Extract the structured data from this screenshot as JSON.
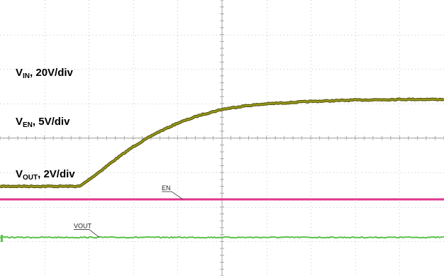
{
  "chart_data": {
    "type": "line",
    "grid": true,
    "divisions": {
      "x": 10,
      "y": 8
    },
    "series": [
      {
        "name": "VIN",
        "color": "#9a9a1a",
        "outline": "#4a4a08",
        "label": {
          "main": "V",
          "sub": "IN",
          "rest": ", 20V/div"
        },
        "x_div": [
          0,
          1.8,
          2.2,
          2.6,
          3.0,
          3.5,
          4.0,
          4.5,
          5.0,
          5.5,
          6.0,
          7.0,
          8.0,
          9.0,
          10.0
        ],
        "y_div": [
          -1.4,
          -1.4,
          -1.02,
          -0.62,
          -0.25,
          0.13,
          0.43,
          0.66,
          0.83,
          0.93,
          0.99,
          1.06,
          1.1,
          1.12,
          1.12
        ]
      },
      {
        "name": "EN",
        "color": "#e0358f",
        "marker_text": "EN",
        "label": {
          "main": "V",
          "sub": "EN",
          "rest": ", 5V/div"
        },
        "x_div": [
          0,
          10
        ],
        "y_div": [
          -1.78,
          -1.78
        ]
      },
      {
        "name": "VOUT",
        "color": "#5cc24a",
        "marker_text": "VOUT",
        "label": {
          "main": "V",
          "sub": "OUT",
          "rest": ", 2V/div"
        },
        "x_div": [
          0,
          10
        ],
        "y_div": [
          -2.88,
          -2.88
        ]
      }
    ]
  }
}
